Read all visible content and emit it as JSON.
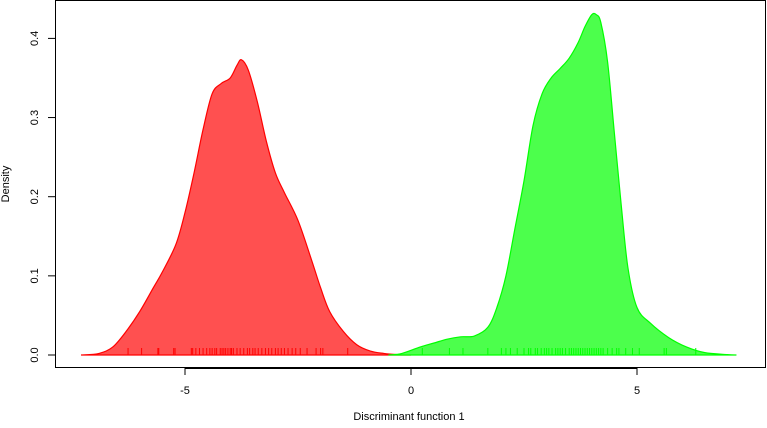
{
  "chart_data": {
    "type": "area",
    "title": "",
    "xlabel": "Discriminant function 1",
    "ylabel": "Density",
    "xlim": [
      -7.6,
      8.0
    ],
    "ylim": [
      0,
      0.44
    ],
    "x_ticks": [
      -5,
      0,
      5
    ],
    "x_tick_labels": [
      "-5",
      "0",
      "5"
    ],
    "y_ticks": [
      0,
      0.1,
      0.2,
      0.3,
      0.4
    ],
    "y_tick_labels": [
      "0.0",
      "0.1",
      "0.2",
      "0.3",
      "0.4"
    ],
    "grid": false,
    "legend": "none",
    "series": [
      {
        "color": "#ff0000",
        "fill": "#ff5050",
        "x": [
          -7.3,
          -6.9,
          -6.6,
          -6.3,
          -6.0,
          -5.7,
          -5.5,
          -5.2,
          -5.0,
          -4.8,
          -4.6,
          -4.4,
          -4.2,
          -4.0,
          -3.85,
          -3.75,
          -3.6,
          -3.4,
          -3.2,
          -3.0,
          -2.8,
          -2.5,
          -2.2,
          -2.0,
          -1.8,
          -1.5,
          -1.2,
          -0.9,
          -0.6,
          -0.3,
          0.0
        ],
        "y": [
          0,
          0.002,
          0.01,
          0.03,
          0.055,
          0.085,
          0.105,
          0.14,
          0.18,
          0.23,
          0.285,
          0.33,
          0.343,
          0.35,
          0.366,
          0.373,
          0.36,
          0.32,
          0.27,
          0.23,
          0.205,
          0.17,
          0.12,
          0.085,
          0.055,
          0.03,
          0.013,
          0.005,
          0.002,
          0.0005,
          0
        ],
        "rug": [
          -6.26,
          -5.96,
          -5.6,
          -5.58,
          -5.25,
          -5.22,
          -4.86,
          -4.83,
          -4.76,
          -4.68,
          -4.6,
          -4.52,
          -4.45,
          -4.4,
          -4.34,
          -4.3,
          -4.22,
          -4.18,
          -4.14,
          -4.1,
          -4.05,
          -4.0,
          -3.97,
          -3.93,
          -3.85,
          -3.78,
          -3.7,
          -3.62,
          -3.57,
          -3.5,
          -3.45,
          -3.38,
          -3.3,
          -3.22,
          -3.15,
          -3.08,
          -3.0,
          -2.94,
          -2.87,
          -2.8,
          -2.72,
          -2.63,
          -2.55,
          -2.45,
          -2.3,
          -2.1,
          -2.0,
          -1.95,
          -1.4
        ]
      },
      {
        "color": "#00ff00",
        "fill": "#4cff4c",
        "x": [
          -0.5,
          -0.2,
          0.2,
          0.5,
          0.8,
          1.1,
          1.4,
          1.7,
          1.9,
          2.1,
          2.3,
          2.5,
          2.7,
          2.9,
          3.1,
          3.3,
          3.5,
          3.7,
          3.85,
          4.0,
          4.1,
          4.2,
          4.35,
          4.5,
          4.65,
          4.8,
          5.0,
          5.3,
          5.7,
          6.1,
          6.5,
          7.0,
          7.2
        ],
        "y": [
          0,
          0.002,
          0.01,
          0.015,
          0.02,
          0.023,
          0.024,
          0.035,
          0.06,
          0.1,
          0.16,
          0.22,
          0.29,
          0.33,
          0.35,
          0.362,
          0.375,
          0.395,
          0.415,
          0.43,
          0.43,
          0.42,
          0.37,
          0.28,
          0.19,
          0.11,
          0.06,
          0.04,
          0.022,
          0.01,
          0.003,
          0.0005,
          0
        ]
      }
    ],
    "rug_green": [
      0.25,
      0.85,
      1.15,
      1.7,
      2.0,
      2.1,
      2.2,
      2.35,
      2.5,
      2.6,
      2.65,
      2.75,
      2.8,
      2.88,
      2.95,
      3.0,
      3.05,
      3.12,
      3.2,
      3.25,
      3.3,
      3.35,
      3.42,
      3.5,
      3.55,
      3.6,
      3.65,
      3.7,
      3.75,
      3.8,
      3.85,
      3.9,
      3.95,
      4.0,
      4.05,
      4.1,
      4.15,
      4.2,
      4.25,
      4.35,
      4.45,
      4.55,
      4.6,
      4.75,
      4.9,
      5.05,
      5.6,
      5.65,
      6.3
    ]
  }
}
